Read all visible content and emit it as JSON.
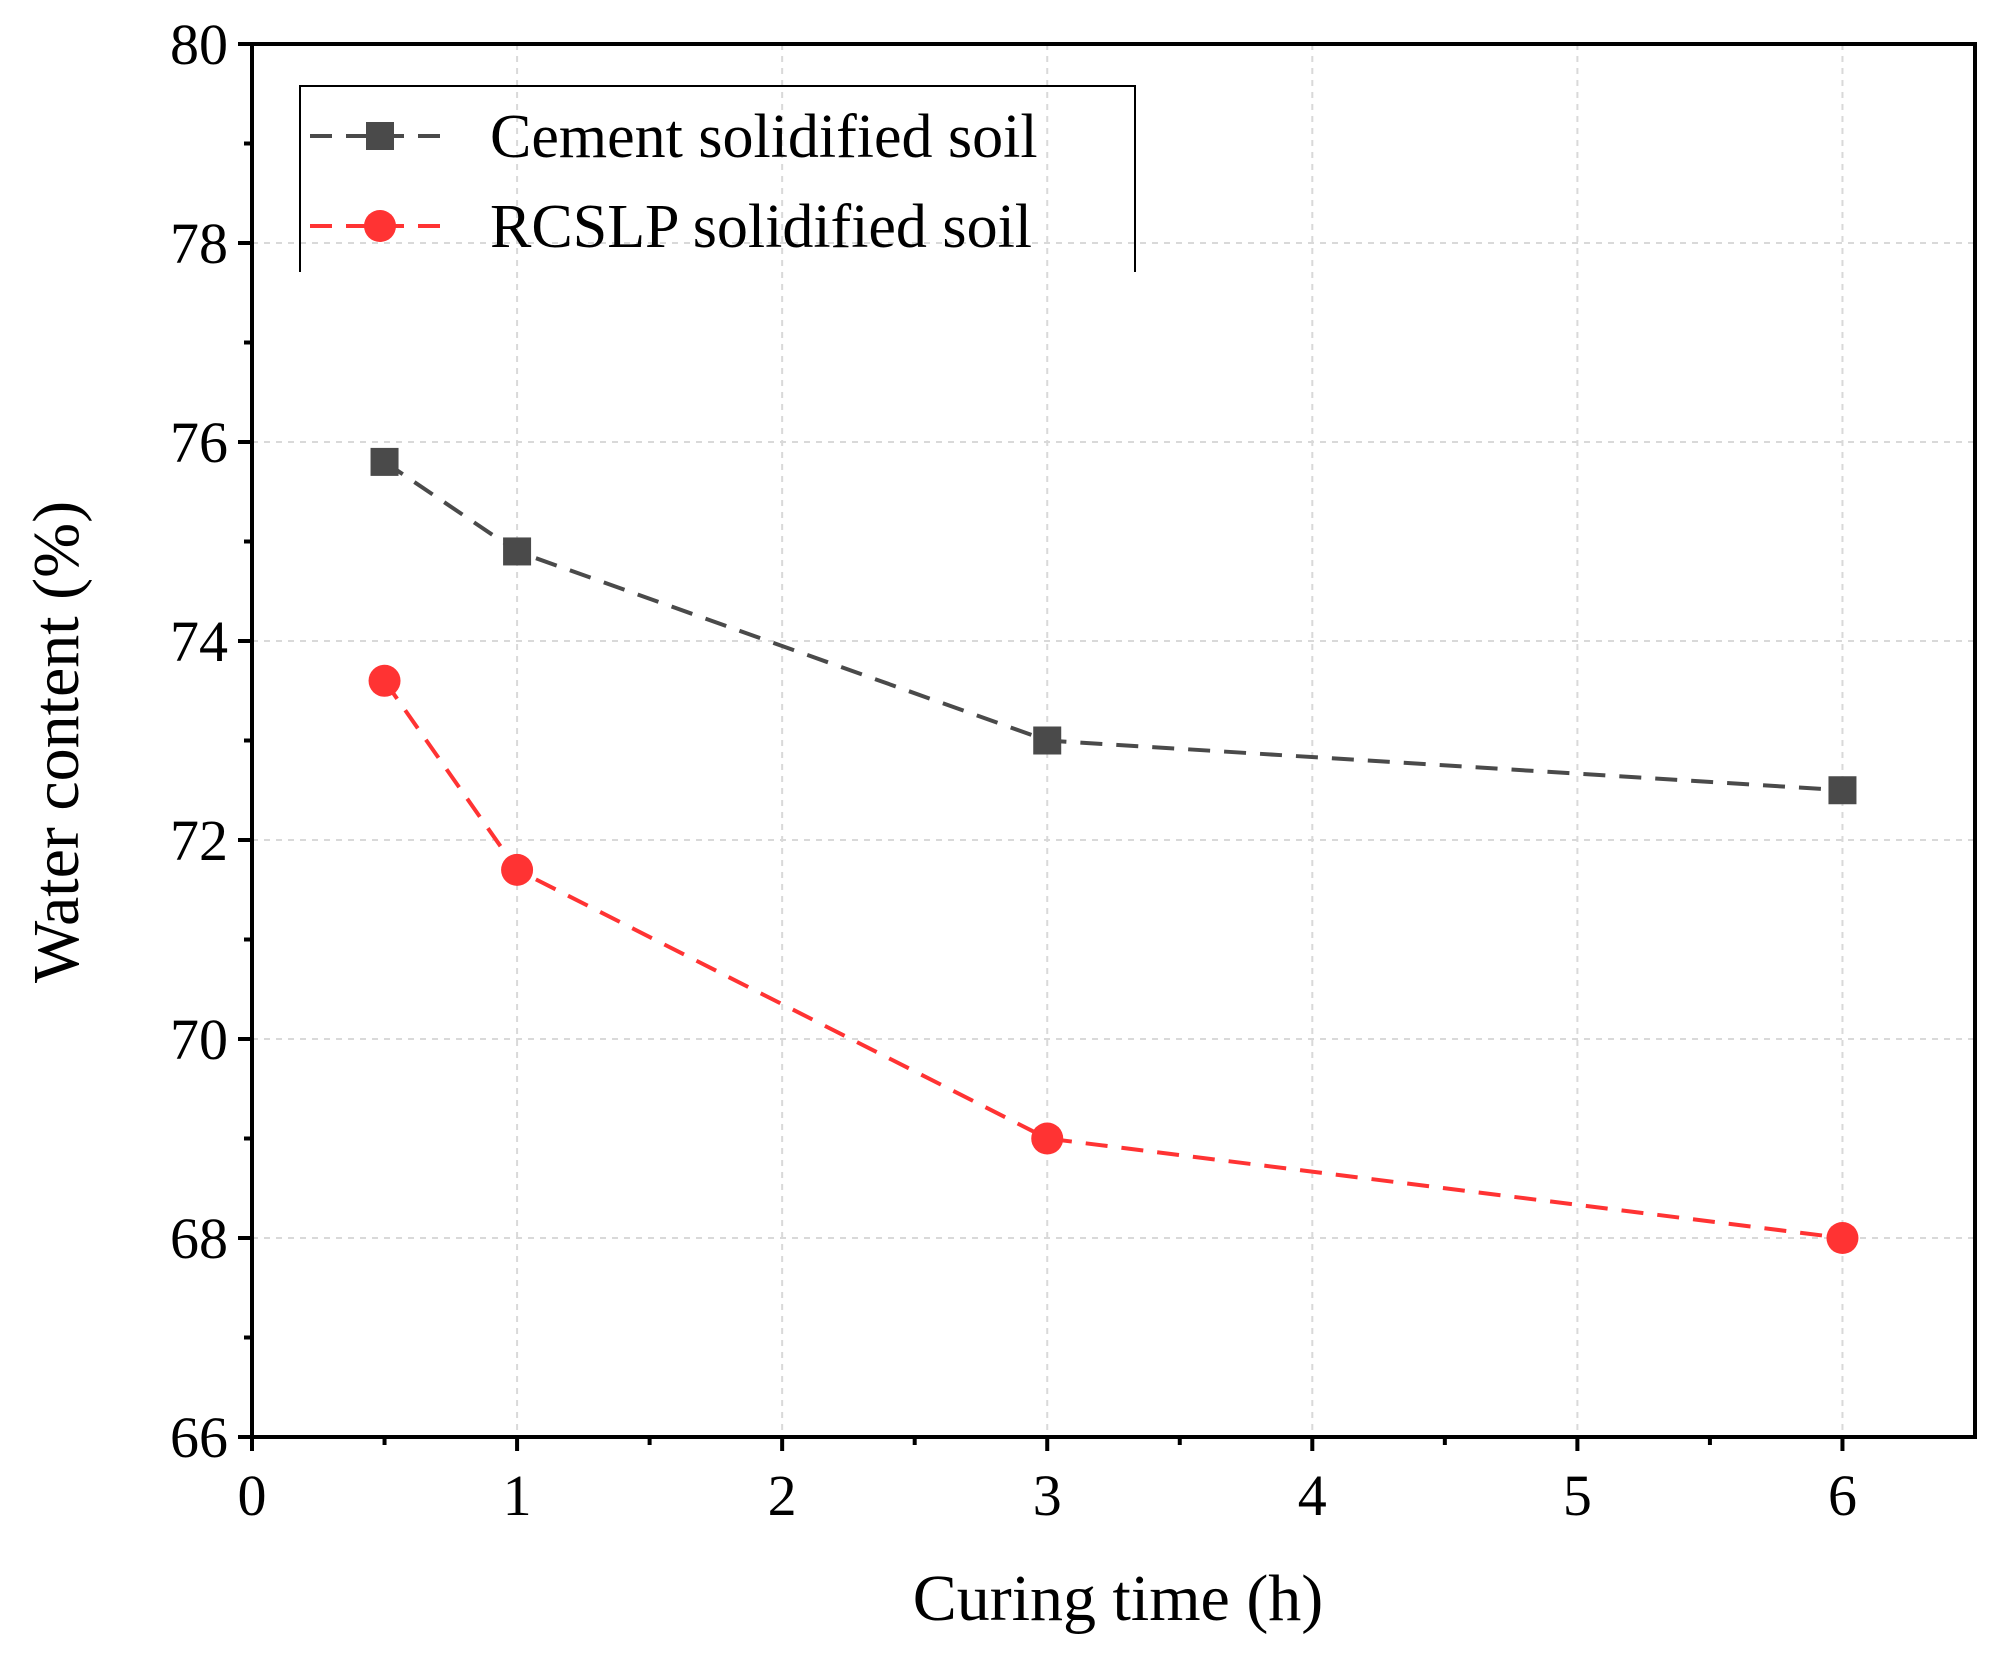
{
  "chart_data": {
    "type": "line",
    "title": "",
    "xlabel": "Curing time (h)",
    "ylabel": "Water content (%)",
    "xlim": [
      0,
      6.5
    ],
    "ylim": [
      66,
      80
    ],
    "x_ticks": [
      0,
      1,
      2,
      3,
      4,
      5,
      6
    ],
    "y_ticks": [
      66,
      68,
      70,
      72,
      74,
      76,
      78,
      80
    ],
    "grid": true,
    "legend_position": "top-left",
    "series": [
      {
        "name": "Cement solidified soil",
        "color": "#4a4a4a",
        "marker": "square",
        "line_style": "dashed",
        "x": [
          0.5,
          1,
          3,
          6
        ],
        "y": [
          75.8,
          74.9,
          73.0,
          72.5
        ]
      },
      {
        "name": "RCSLP solidified soil",
        "color": "#ff3333",
        "marker": "circle",
        "line_style": "dashed",
        "x": [
          0.5,
          1,
          3,
          6
        ],
        "y": [
          73.6,
          71.7,
          69.0,
          68.0
        ]
      }
    ]
  }
}
